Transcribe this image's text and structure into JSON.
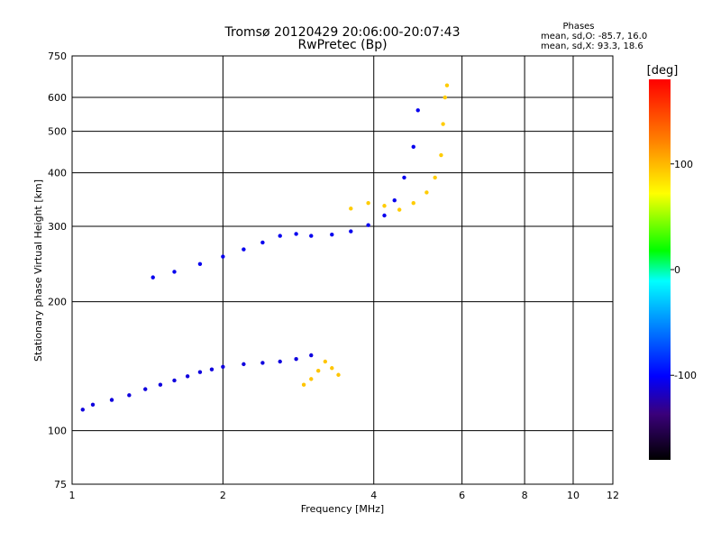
{
  "chart_data": {
    "type": "scatter",
    "title": "Tromsø 20120429 20:06:00-20:07:43",
    "subtitle": "RwPretec (Bp)",
    "xlabel": "Frequency [MHz]",
    "ylabel": "Stationary phase Virtual Height [km]",
    "x_scale": "log",
    "y_scale": "log",
    "xlim": [
      1,
      12
    ],
    "ylim": [
      75,
      750
    ],
    "x_ticks": [
      1,
      2,
      4,
      6,
      8,
      10,
      12
    ],
    "y_ticks": [
      75,
      100,
      200,
      300,
      400,
      500,
      600,
      750
    ],
    "grid": true,
    "phases_box": {
      "heading": "Phases",
      "line1": "mean, sd,O: -85.7, 16.0",
      "line2": "mean, sd,X:  93.3, 18.6"
    },
    "colorbar": {
      "label": "[deg]",
      "range": [
        -180,
        180
      ],
      "ticks": [
        100,
        0,
        -100
      ]
    },
    "traces": [
      {
        "mode": "O",
        "phase": -110,
        "points": [
          [
            1.05,
            112
          ],
          [
            1.1,
            115
          ],
          [
            1.2,
            118
          ],
          [
            1.3,
            121
          ],
          [
            1.4,
            125
          ],
          [
            1.5,
            128
          ],
          [
            1.6,
            131
          ],
          [
            1.7,
            134
          ],
          [
            1.8,
            137
          ],
          [
            1.9,
            139
          ],
          [
            2.0,
            141
          ],
          [
            2.2,
            143
          ],
          [
            2.4,
            144
          ],
          [
            2.6,
            145
          ],
          [
            2.8,
            147
          ],
          [
            3.0,
            150
          ]
        ]
      },
      {
        "mode": "O",
        "phase": -105,
        "points": [
          [
            1.45,
            228
          ],
          [
            1.6,
            235
          ],
          [
            1.8,
            245
          ],
          [
            2.0,
            255
          ],
          [
            2.2,
            265
          ],
          [
            2.4,
            275
          ],
          [
            2.6,
            285
          ],
          [
            2.8,
            288
          ],
          [
            3.0,
            285
          ],
          [
            3.3,
            287
          ],
          [
            3.6,
            292
          ],
          [
            3.9,
            302
          ],
          [
            4.2,
            318
          ],
          [
            4.4,
            345
          ],
          [
            4.6,
            390
          ],
          [
            4.8,
            460
          ],
          [
            4.9,
            560
          ]
        ]
      },
      {
        "mode": "X",
        "phase": 95,
        "points": [
          [
            2.9,
            128
          ],
          [
            3.0,
            132
          ],
          [
            3.1,
            138
          ],
          [
            3.2,
            145
          ],
          [
            3.3,
            140
          ],
          [
            3.4,
            135
          ]
        ]
      },
      {
        "mode": "X",
        "phase": 92,
        "points": [
          [
            3.6,
            330
          ],
          [
            3.9,
            340
          ],
          [
            4.2,
            335
          ],
          [
            4.5,
            328
          ],
          [
            4.8,
            340
          ],
          [
            5.1,
            360
          ],
          [
            5.3,
            390
          ],
          [
            5.45,
            440
          ],
          [
            5.5,
            520
          ],
          [
            5.55,
            600
          ],
          [
            5.6,
            640
          ]
        ]
      }
    ]
  }
}
